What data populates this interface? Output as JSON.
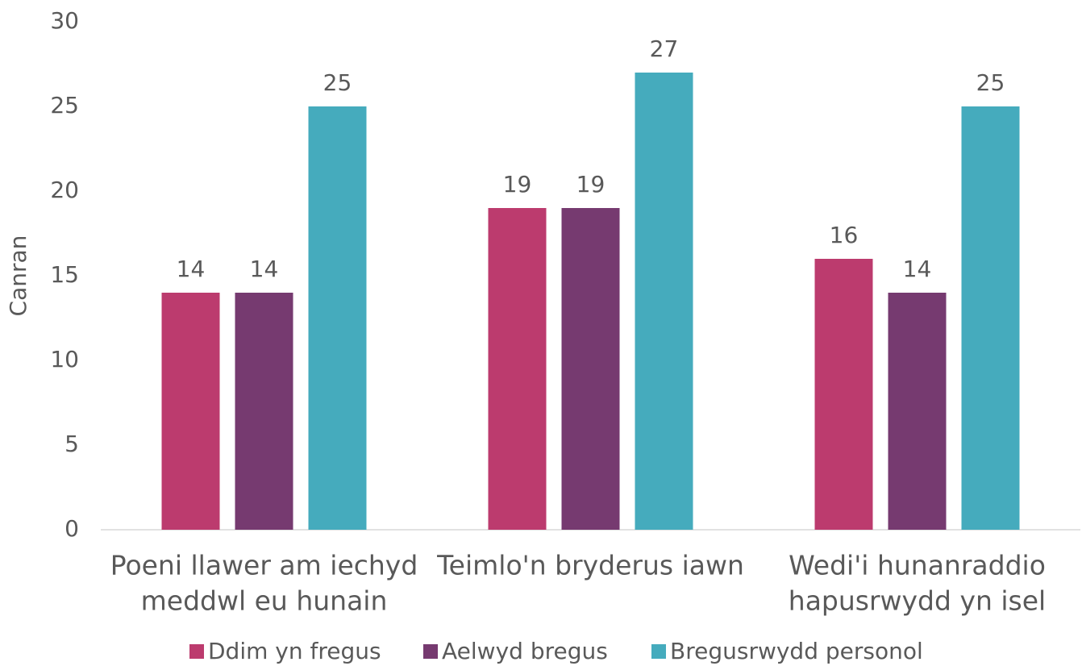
{
  "chart_data": {
    "type": "bar",
    "y_label": "Canran",
    "categories": [
      [
        "Poeni llawer am iechyd",
        "meddwl eu hunain"
      ],
      [
        "Teimlo'n bryderus iawn"
      ],
      [
        "Wedi'i hunanraddio",
        "hapusrwydd yn isel"
      ]
    ],
    "series": [
      {
        "name": "Ddim yn fregus",
        "color": "#bc3b6e",
        "values": [
          14,
          19,
          16
        ]
      },
      {
        "name": "Aelwyd bregus",
        "color": "#763a70",
        "values": [
          14,
          19,
          14
        ]
      },
      {
        "name": "Bregusrwydd personol",
        "color": "#45abbd",
        "values": [
          25,
          27,
          25
        ]
      }
    ],
    "ylim": [
      0,
      30
    ],
    "yticks": [
      0,
      5,
      10,
      15,
      20,
      25,
      30
    ],
    "grid": false,
    "legend": "bottom"
  }
}
